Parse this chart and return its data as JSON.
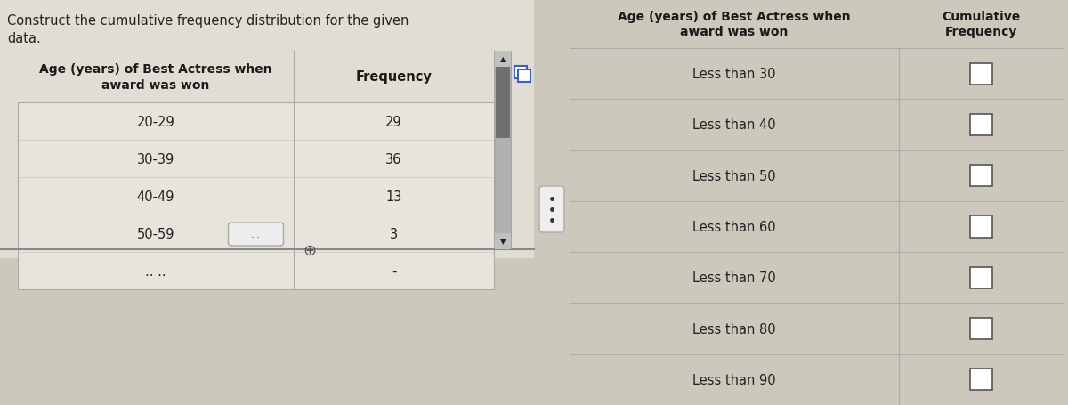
{
  "title_line1": "Construct the cumulative frequency distribution for the given",
  "title_line2": "data.",
  "left_table": {
    "col1_header": "Age (years) of Best Actress when\naward was won",
    "col2_header": "Frequency",
    "rows": [
      [
        "20-29",
        "29"
      ],
      [
        "30-39",
        "36"
      ],
      [
        "40-49",
        "13"
      ],
      [
        "50-59",
        "3"
      ],
      [
        ".. ..",
        "-"
      ]
    ]
  },
  "right_table": {
    "col1_header": "Age (years) of Best Actress when\naward was won",
    "col2_header": "Cumulative\nFrequency",
    "rows": [
      "Less than 30",
      "Less than 40",
      "Less than 50",
      "Less than 60",
      "Less than 70",
      "Less than 80",
      "Less than 90"
    ]
  },
  "bg_color": "#ccc8bc",
  "left_panel_bg": "#e2ddd4",
  "left_table_bg": "#e8e4db",
  "right_panel_bg": "#ccc8bc",
  "header_bold_color": "#1a1a1a",
  "text_color": "#222222",
  "line_color": "#aaaaaa",
  "scrollbar_track": "#b0b0b0",
  "scrollbar_thumb": "#707070",
  "checkbox_edge": "#555555",
  "checkbox_fill": "#ffffff",
  "dots_btn_edge": "#aaaaaa",
  "dots_btn_fill": "#eeeeee"
}
